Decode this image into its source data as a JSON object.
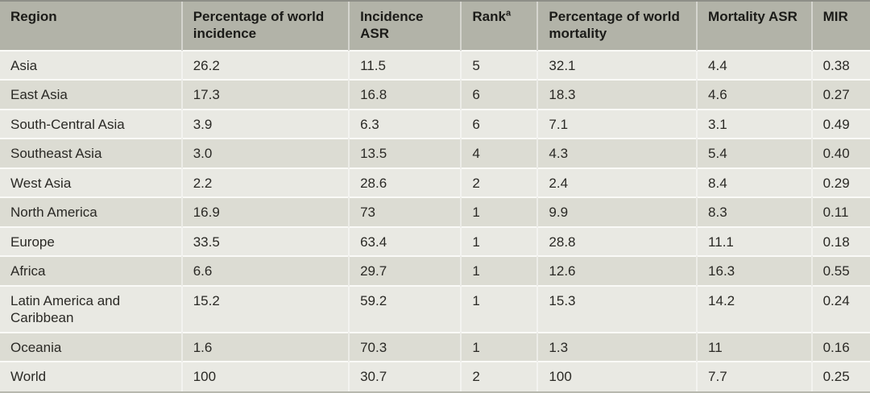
{
  "table": {
    "columns": [
      {
        "key": "region",
        "label": "Region"
      },
      {
        "key": "pct_world_incidence",
        "label": "Percentage of world incidence"
      },
      {
        "key": "incidence_asr",
        "label": "Incidence ASR"
      },
      {
        "key": "rank",
        "label": "Rank",
        "sup": "a"
      },
      {
        "key": "pct_world_mortality",
        "label": "Percentage of world mortality"
      },
      {
        "key": "mortality_asr",
        "label": "Mortality ASR"
      },
      {
        "key": "mir",
        "label": "MIR"
      }
    ],
    "rows": [
      [
        "Asia",
        "26.2",
        "11.5",
        "5",
        "32.1",
        "4.4",
        "0.38"
      ],
      [
        "East Asia",
        "17.3",
        "16.8",
        "6",
        "18.3",
        "4.6",
        "0.27"
      ],
      [
        "South-Central Asia",
        "3.9",
        "6.3",
        "6",
        "7.1",
        "3.1",
        "0.49"
      ],
      [
        "Southeast Asia",
        "3.0",
        "13.5",
        "4",
        "4.3",
        "5.4",
        "0.40"
      ],
      [
        "West Asia",
        "2.2",
        "28.6",
        "2",
        "2.4",
        "8.4",
        "0.29"
      ],
      [
        "North America",
        "16.9",
        "73",
        "1",
        "9.9",
        "8.3",
        "0.11"
      ],
      [
        "Europe",
        "33.5",
        "63.4",
        "1",
        "28.8",
        "11.1",
        "0.18"
      ],
      [
        "Africa",
        "6.6",
        "29.7",
        "1",
        "12.6",
        "16.3",
        "0.55"
      ],
      [
        "Latin America and Caribbean",
        "15.2",
        "59.2",
        "1",
        "15.3",
        "14.2",
        "0.24"
      ],
      [
        "Oceania",
        "1.6",
        "70.3",
        "1",
        "1.3",
        "11",
        "0.16"
      ],
      [
        "World",
        "100",
        "30.7",
        "2",
        "100",
        "7.7",
        "0.25"
      ]
    ]
  },
  "colors": {
    "header_bg": "#b2b3a8",
    "row_light": "#e9e9e3",
    "row_dark": "#dcdcd3",
    "separator": "#fafaf7",
    "top_border": "#8e8f88",
    "bottom_border": "#b7b8ae",
    "header_text": "#1b1b18",
    "body_text": "#2a2925"
  }
}
